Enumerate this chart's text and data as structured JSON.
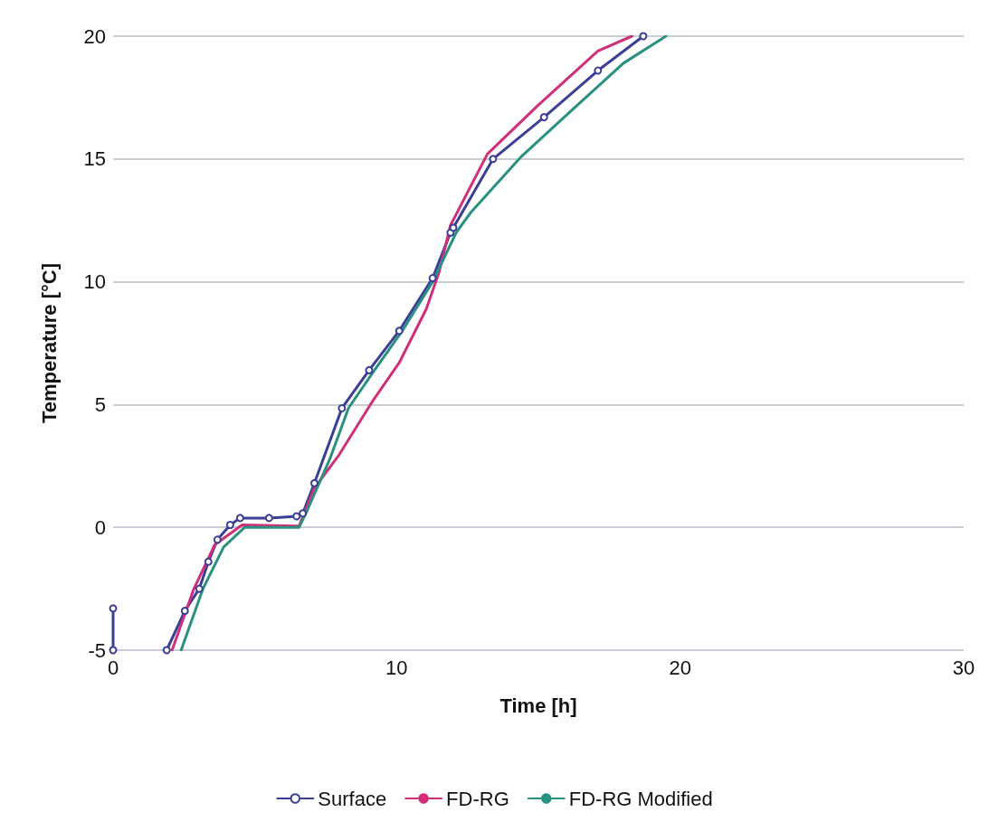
{
  "chart_data": {
    "type": "line",
    "xlabel": "Time [h]",
    "ylabel": "Temperature [°C]",
    "xlim": [
      0,
      30
    ],
    "xticks": [
      0,
      10,
      20,
      30
    ],
    "ylim": [
      -5,
      20
    ],
    "yticks": [
      -5,
      0,
      5,
      10,
      15,
      20
    ],
    "grid": "y",
    "legend": "bottom",
    "line_style": "solid",
    "series": [
      {
        "name": "Surface",
        "color": "#3b3f95",
        "marker": "circle",
        "x": [
          0,
          0,
          1,
          1.89,
          2.53,
          3.04,
          3.36,
          3.68,
          4.13,
          4.48,
          5.5,
          6.47,
          6.69,
          7.1,
          8.07,
          9.03,
          10.09,
          11.27,
          11.9,
          12.0,
          13.4,
          15.2,
          17.1,
          18.7
        ],
        "values": [
          -3.3,
          -5,
          null,
          -5,
          -3.4,
          -2.5,
          -1.4,
          -0.5,
          0.1,
          0.38,
          0.38,
          0.45,
          0.57,
          1.8,
          4.85,
          6.4,
          8.0,
          10.15,
          12.0,
          12.2,
          15.0,
          16.7,
          18.6,
          20
        ]
      },
      {
        "name": "FD-RG",
        "color": "#d0307a",
        "marker": "none",
        "x": [
          2.08,
          2.85,
          3.59,
          4.55,
          6.56,
          7.1,
          7.97,
          9.13,
          10.09,
          11.05,
          11.5,
          11.9,
          13.2,
          15.0,
          17.1,
          18.3
        ],
        "values": [
          -5,
          -2.5,
          -0.7,
          0.1,
          0.05,
          1.6,
          2.95,
          5.1,
          6.7,
          8.9,
          10.4,
          12.3,
          15.2,
          17.2,
          19.4,
          20
        ]
      },
      {
        "name": "FD-RG Modified",
        "color": "#2a9080",
        "marker": "none",
        "x": [
          2.4,
          3.17,
          3.9,
          4.64,
          6.56,
          6.8,
          7.65,
          8.3,
          9.13,
          10.2,
          11.27,
          12.1,
          12.6,
          14.4,
          16.1,
          18.0,
          19.5
        ],
        "values": [
          -5,
          -2.5,
          -0.8,
          0,
          0,
          0.57,
          2.8,
          4.85,
          6.25,
          8.0,
          10.0,
          12.0,
          12.8,
          15.1,
          16.9,
          18.9,
          20
        ]
      }
    ]
  }
}
